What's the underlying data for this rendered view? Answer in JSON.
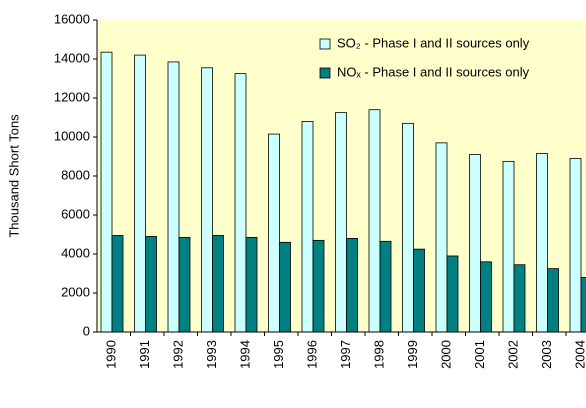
{
  "chart_data": {
    "type": "bar",
    "y_label": "Thousand Short Tons",
    "categories": [
      "1990",
      "1991",
      "1992",
      "1993",
      "1994",
      "1995",
      "1996",
      "1997",
      "1998",
      "1999",
      "2000",
      "2001",
      "2002",
      "2003",
      "2004"
    ],
    "series": [
      {
        "name": "SO₂ - Phase I and II sources only",
        "color": "#ccffff",
        "values": [
          14350,
          14200,
          13850,
          13550,
          13250,
          10150,
          10800,
          11250,
          11400,
          10700,
          9700,
          9100,
          8750,
          9150,
          8900
        ]
      },
      {
        "name": "NOₓ - Phase I and II sources only",
        "color": "#008080",
        "values": [
          4950,
          4900,
          4850,
          4950,
          4850,
          4600,
          4700,
          4800,
          4650,
          4250,
          3900,
          3600,
          3450,
          3250,
          2800
        ]
      }
    ],
    "ylim": [
      0,
      16000
    ],
    "yticks": [
      0,
      2000,
      4000,
      6000,
      8000,
      10000,
      12000,
      14000,
      16000
    ],
    "grid": false,
    "plot_background": "#ffffcc",
    "legend": "top-right"
  }
}
